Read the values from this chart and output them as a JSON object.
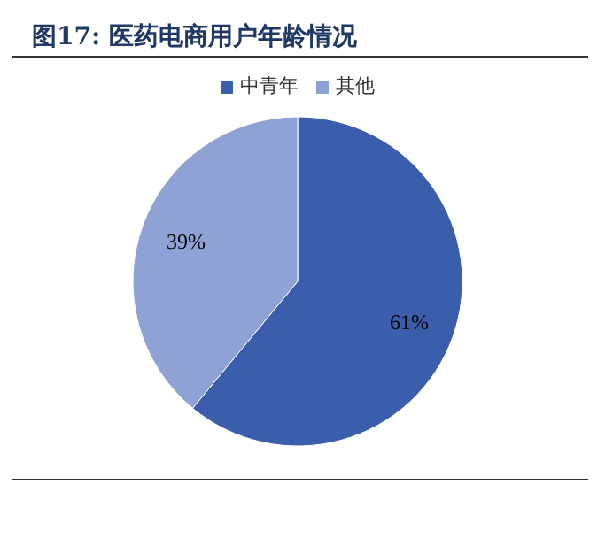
{
  "chart_data": {
    "type": "pie",
    "title": "图17: 医药电商用户年龄情况",
    "categories": [
      "中青年",
      "其他"
    ],
    "values": [
      61,
      39
    ],
    "colors": [
      "#3a5eab",
      "#8fa2d5"
    ],
    "value_labels": [
      "61%",
      "39%"
    ],
    "legend": "top"
  }
}
